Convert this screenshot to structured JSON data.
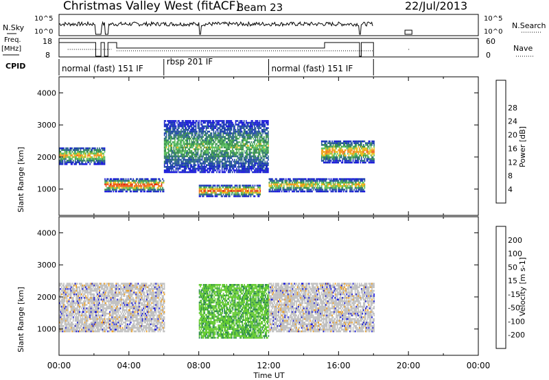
{
  "header": {
    "station": "Christmas Valley West (fitACF)",
    "beam": "Beam 23",
    "date": "22/Jul/2013"
  },
  "top_panels": {
    "nsky_label": "N.Sky",
    "nsky_ticks": [
      "10^5",
      "10^0"
    ],
    "nsearch_label": "N.Search",
    "nsearch_ticks": [
      "10^5",
      "10^0"
    ],
    "freq_label": "Freq.",
    "freq_unit": "[MHz]",
    "freq_ticks": [
      "18",
      "8"
    ],
    "nave_label": "Nave",
    "nave_ticks": [
      "60",
      "0"
    ],
    "cpid_label": "CPID",
    "cpid_segments": [
      {
        "label": "normal (fast) 151 IF",
        "start_hour": 0.0,
        "end_hour": 6.0
      },
      {
        "label": "rbsp 201 IF",
        "start_hour": 6.0,
        "end_hour": 12.0
      },
      {
        "label": "normal (fast) 151 IF",
        "start_hour": 12.0,
        "end_hour": 18.0
      }
    ]
  },
  "chart_data": [
    {
      "type": "heatmap",
      "title": "Power",
      "ylabel": "Slant Range [km]",
      "xlabel": "Time UT",
      "x_ticks": [
        "00:00",
        "04:00",
        "08:00",
        "12:00",
        "16:00",
        "20:00",
        "00:00"
      ],
      "xlim_hours": [
        0,
        24
      ],
      "y_ticks": [
        1000,
        2000,
        3000,
        4000
      ],
      "ylim": [
        180,
        4500
      ],
      "colorbar_label": "Power [dB]",
      "colorbar_ticks": [
        4,
        8,
        12,
        16,
        20,
        24,
        28
      ],
      "colorbar_colors": [
        "#1a1adb",
        "#1e40b0",
        "#2f6a8a",
        "#3a9050",
        "#5cc060",
        "#e8c020",
        "#f09020",
        "#f06020",
        "#e02010"
      ],
      "features": [
        {
          "desc": "band",
          "start_hour": 0.0,
          "end_hour": 2.6,
          "range_km": [
            1750,
            2300
          ],
          "peak_db": 20
        },
        {
          "desc": "band",
          "start_hour": 2.6,
          "end_hour": 6.0,
          "range_km": [
            900,
            1300
          ],
          "peak_db": 28
        },
        {
          "desc": "band",
          "start_hour": 8.0,
          "end_hour": 11.5,
          "range_km": [
            750,
            1100
          ],
          "peak_db": 26
        },
        {
          "desc": "arc",
          "start_hour": 6.0,
          "end_hour": 12.0,
          "range_km": [
            1500,
            3100
          ],
          "peak_db": 14
        },
        {
          "desc": "band",
          "start_hour": 12.0,
          "end_hour": 17.5,
          "range_km": [
            900,
            1300
          ],
          "peak_db": 20
        },
        {
          "desc": "band",
          "start_hour": 15.0,
          "end_hour": 18.0,
          "range_km": [
            1800,
            2500
          ],
          "peak_db": 22
        }
      ]
    },
    {
      "type": "heatmap",
      "title": "Velocity",
      "ylabel": "Slant Range [km]",
      "xlabel": "Time UT",
      "x_ticks": [
        "00:00",
        "04:00",
        "08:00",
        "12:00",
        "16:00",
        "20:00",
        "00:00"
      ],
      "xlim_hours": [
        0,
        24
      ],
      "y_ticks": [
        1000,
        2000,
        3000,
        4000
      ],
      "ylim": [
        180,
        4500
      ],
      "colorbar_label": "Velocity [m s-1]",
      "colorbar_ticks": [
        200,
        100,
        50,
        15,
        -15,
        -50,
        -100,
        -200
      ],
      "colorbar_colors": [
        "#1a1adb",
        "#1e60a0",
        "#2e8a50",
        "#66cc33",
        "#c0c0c0",
        "#f0a020",
        "#f07010",
        "#f04010",
        "#e01010"
      ],
      "features": [
        {
          "desc": "ground scatter",
          "start_hour": 0.0,
          "end_hour": 6.0,
          "range_km": [
            900,
            2400
          ],
          "velocity": 0
        },
        {
          "desc": "positive velocities",
          "start_hour": 8.0,
          "end_hour": 12.0,
          "range_km": [
            700,
            2400
          ],
          "velocity": 30
        },
        {
          "desc": "ground scatter",
          "start_hour": 12.0,
          "end_hour": 18.0,
          "range_km": [
            900,
            2400
          ],
          "velocity": 0
        }
      ]
    }
  ]
}
